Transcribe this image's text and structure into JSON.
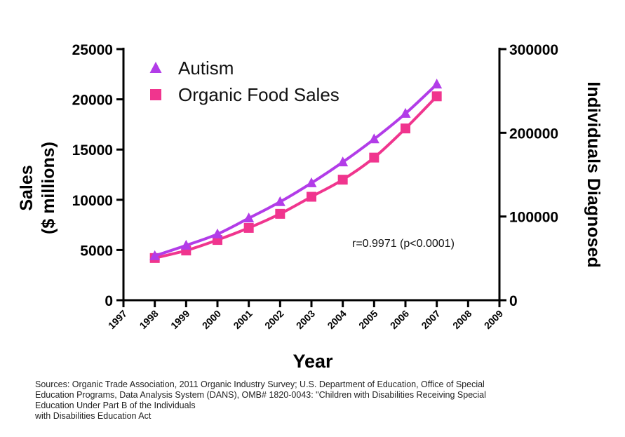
{
  "chart_data": {
    "type": "line",
    "x": [
      1998,
      1999,
      2000,
      2001,
      2002,
      2003,
      2004,
      2005,
      2006,
      2007
    ],
    "xlim": [
      1997,
      2009
    ],
    "x_ticks": [
      "1997",
      "1998",
      "1999",
      "2000",
      "2001",
      "2002",
      "2003",
      "2004",
      "2005",
      "2006",
      "2007",
      "2008",
      "2009"
    ],
    "xlabel": "Year",
    "ylabel_left": [
      "Sales",
      "($ millions)"
    ],
    "ylim_left": [
      0,
      25000
    ],
    "y_ticks_left": [
      "0",
      "5000",
      "10000",
      "15000",
      "20000",
      "25000"
    ],
    "ylabel_right": "Individuals Diagnosed",
    "ylim_right": [
      0,
      300000
    ],
    "y_ticks_right": [
      "0",
      "100000",
      "200000",
      "300000"
    ],
    "legend_position": "top-left",
    "series": [
      {
        "name": "Autism",
        "axis": "right",
        "marker": "triangle",
        "color": "#b23ce8",
        "values": [
          53000,
          65500,
          79000,
          98000,
          117500,
          140000,
          165000,
          192500,
          223000,
          258000
        ]
      },
      {
        "name": "Organic Food Sales",
        "axis": "left",
        "marker": "square",
        "color": "#f0358e",
        "values": [
          4200,
          4950,
          6000,
          7200,
          8600,
          10300,
          12000,
          14200,
          17100,
          20300
        ]
      }
    ],
    "annotation": "r=0.9971 (p<0.0001)"
  },
  "source_note": [
    "Sources: Organic Trade Association,  2011 Organic Industry Survey; U.S. Department of Education, Office of Special",
    "Education Programs, Data Analysis System (DANS), OMB# 1820-0043: \"Children with Disabilities Receiving Special",
    "Education Under Part B of the Individuals",
    "with Disabilities Education Act"
  ]
}
